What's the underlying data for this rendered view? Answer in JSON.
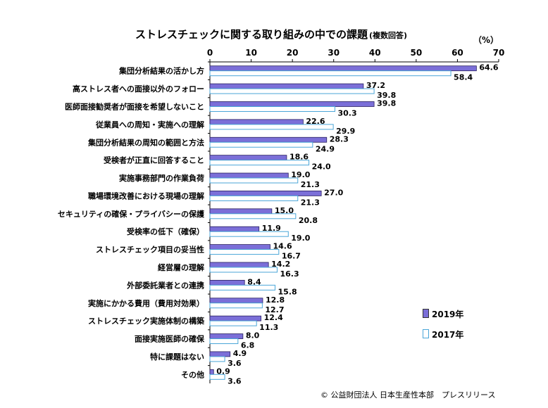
{
  "chart_data": {
    "type": "bar",
    "orientation": "horizontal",
    "title": "ストレスチェックに関する取り組みの中での課題",
    "subtitle": "(複数回答)",
    "unit_label": "（%）",
    "xlim": [
      0,
      70
    ],
    "xticks": [
      0,
      10,
      20,
      30,
      40,
      50,
      60,
      70
    ],
    "grid": false,
    "legend_position": "bottom-right",
    "categories": [
      "集団分析結果の活かし方",
      "高ストレス者への面接以外のフォロー",
      "医師面接勧奨者が面接を希望しないこと",
      "従業員への周知・実施への理解",
      "集団分析結果の周知の範囲と方法",
      "受検者が正直に回答すること",
      "実施事務部門の作業負荷",
      "職場環境改善における現場の理解",
      "セキュリティの確保・プライバシーの保護",
      "受検率の低下（確保）",
      "ストレスチェック項目の妥当性",
      "経営層の理解",
      "外部委託業者との連携",
      "実施にかかる費用（費用対効果）",
      "ストレスチェック実施体制の構築",
      "面接実施医師の確保",
      "特に課題はない",
      "その他"
    ],
    "series": [
      {
        "name": "2019年",
        "color": "#7b6fd8",
        "values": [
          64.6,
          37.2,
          39.8,
          22.6,
          28.3,
          18.6,
          19.0,
          27.0,
          15.0,
          11.9,
          14.6,
          14.2,
          8.4,
          12.8,
          12.4,
          8.0,
          4.9,
          0.9
        ]
      },
      {
        "name": "2017年",
        "color": "#ffffff",
        "border": "#4aa6d8",
        "values": [
          58.4,
          39.8,
          30.3,
          29.9,
          24.9,
          24.0,
          21.3,
          21.3,
          20.8,
          19.0,
          16.7,
          16.3,
          15.8,
          12.7,
          11.3,
          6.8,
          3.6,
          3.6
        ]
      }
    ]
  },
  "footer": {
    "copyright": "© 公益財団法人 日本生産性本部　プレスリリース"
  }
}
